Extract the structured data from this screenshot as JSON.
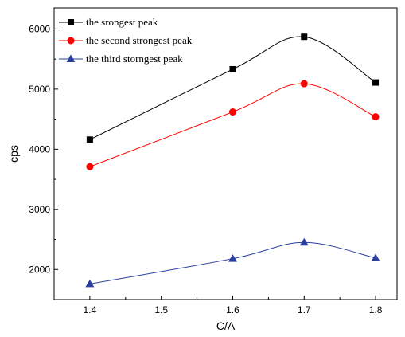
{
  "chart_data": {
    "type": "line",
    "xlabel": "C/A",
    "ylabel": "cps",
    "xlim": [
      1.35,
      1.83
    ],
    "ylim": [
      1500,
      6350
    ],
    "x_ticks": [
      1.4,
      1.5,
      1.6,
      1.7,
      1.8
    ],
    "x_tick_labels": [
      "1.4",
      "1.5",
      "1.6",
      "1.7",
      "1.8"
    ],
    "y_ticks": [
      2000,
      3000,
      4000,
      5000,
      6000
    ],
    "y_tick_labels": [
      "2000",
      "3000",
      "4000",
      "5000",
      "6000"
    ],
    "grid": false,
    "legend_position": "top-left",
    "series": [
      {
        "name": "the srongest peak",
        "color": "#000000",
        "marker": "square",
        "x": [
          1.4,
          1.6,
          1.7,
          1.8
        ],
        "y": [
          4160,
          5330,
          5870,
          5110
        ]
      },
      {
        "name": "the second strongest peak",
        "color": "#ff0000",
        "marker": "circle",
        "x": [
          1.4,
          1.6,
          1.7,
          1.8
        ],
        "y": [
          3710,
          4620,
          5090,
          4540
        ]
      },
      {
        "name": "the third storngest peak",
        "color": "#2b3f9e",
        "marker": "triangle",
        "x": [
          1.4,
          1.6,
          1.7,
          1.8
        ],
        "y": [
          1760,
          2180,
          2450,
          2190
        ]
      }
    ]
  }
}
